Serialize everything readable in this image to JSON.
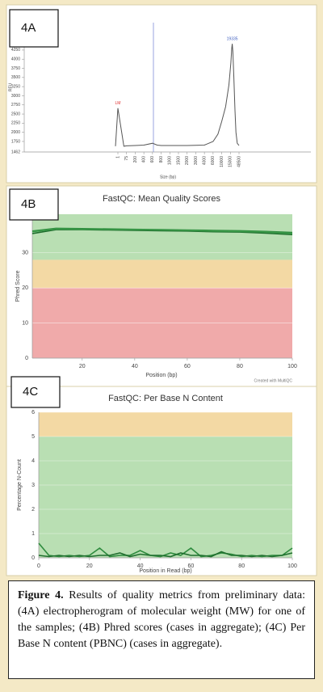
{
  "chart_data": [
    {
      "type": "line",
      "label": "4A",
      "y_label": "RFU",
      "x_label": "Size (bp)",
      "ylim": [
        1462,
        5000
      ],
      "yticks": [
        1462,
        1750,
        2000,
        2250,
        2500,
        2750,
        3000,
        3250,
        3500,
        3750,
        4000,
        4250
      ],
      "xticks": [
        1,
        75,
        200,
        400,
        600,
        800,
        1000,
        1500,
        2000,
        3000,
        4000,
        6000,
        10000,
        15000,
        48500
      ],
      "x": [
        -20,
        1,
        20,
        75,
        200,
        400,
        600,
        700,
        800,
        1000,
        2000,
        4000,
        6000,
        8000,
        10000,
        12000,
        14000,
        16000,
        18000,
        19335,
        21000,
        24000,
        28000,
        32000,
        38000,
        48500
      ],
      "series": [
        {
          "color": "#555555",
          "values": [
            1620,
            2660,
            1620,
            1630,
            1640,
            1650,
            1700,
            1650,
            1640,
            1640,
            1640,
            1650,
            1750,
            1950,
            2300,
            2700,
            3300,
            3900,
            4300,
            4420,
            4200,
            3500,
            2600,
            2000,
            1700,
            1640
          ]
        }
      ],
      "annotations": [
        {
          "text": "LM",
          "x": 1,
          "y": 2660,
          "color": "#e03030"
        },
        {
          "text": "19335",
          "x": 19335,
          "y": 4420,
          "color": "#4060c0"
        }
      ]
    },
    {
      "type": "line",
      "label": "4B",
      "title": "FastQC: Mean Quality Scores",
      "y_label": "Phred Score",
      "x_label": "Position (bp)",
      "credit": "Created with MultiQC",
      "xlim": [
        1,
        100
      ],
      "xticks": [
        20,
        40,
        60,
        80,
        100
      ],
      "ylim": [
        0,
        41
      ],
      "yticks": [
        0,
        10,
        20,
        30
      ],
      "grid": true,
      "bands": [
        {
          "from": 28,
          "to": 41,
          "color": "#b9dfb3"
        },
        {
          "from": 20,
          "to": 28,
          "color": "#f3d9a4"
        },
        {
          "from": 0,
          "to": 20,
          "color": "#f0aaaa"
        }
      ],
      "x": [
        1,
        10,
        20,
        30,
        40,
        50,
        60,
        70,
        80,
        90,
        100
      ],
      "series": [
        {
          "color": "#2e8b3e",
          "values": [
            36.2,
            37.0,
            36.9,
            36.8,
            36.7,
            36.6,
            36.5,
            36.4,
            36.3,
            36.1,
            35.8
          ]
        },
        {
          "color": "#1f6e2e",
          "values": [
            35.5,
            36.6,
            36.6,
            36.5,
            36.4,
            36.3,
            36.2,
            36.0,
            35.9,
            35.6,
            35.2
          ]
        },
        {
          "color": "#3a9a48",
          "values": [
            36.0,
            36.8,
            36.7,
            36.7,
            36.6,
            36.5,
            36.4,
            36.2,
            36.1,
            35.9,
            35.5
          ]
        }
      ]
    },
    {
      "type": "line",
      "label": "4C",
      "title": "FastQC: Per Base N Content",
      "y_label": "Percentage N-Count",
      "x_label": "Position in Read (bp)",
      "xlim": [
        0,
        100
      ],
      "xticks": [
        0,
        20,
        40,
        60,
        80,
        100
      ],
      "ylim": [
        0,
        6
      ],
      "yticks": [
        0,
        1,
        2,
        3,
        4,
        5,
        6
      ],
      "grid": true,
      "bands": [
        {
          "from": 5,
          "to": 6,
          "color": "#f3d9a4"
        },
        {
          "from": 0,
          "to": 5,
          "color": "#b9dfb3"
        }
      ],
      "x": [
        0,
        4,
        8,
        12,
        16,
        20,
        24,
        28,
        32,
        36,
        40,
        44,
        48,
        52,
        56,
        60,
        64,
        68,
        72,
        76,
        80,
        84,
        88,
        92,
        96,
        100
      ],
      "series": [
        {
          "color": "#2e8b3e",
          "values": [
            0.6,
            0.1,
            0.05,
            0.1,
            0.05,
            0.1,
            0.4,
            0.05,
            0.1,
            0.1,
            0.3,
            0.1,
            0.05,
            0.2,
            0.1,
            0.4,
            0.05,
            0.1,
            0.2,
            0.15,
            0.05,
            0.1,
            0.05,
            0.1,
            0.1,
            0.4
          ]
        },
        {
          "color": "#1f6e2e",
          "values": [
            0.1,
            0.05,
            0.1,
            0.05,
            0.1,
            0.05,
            0.1,
            0.1,
            0.2,
            0.05,
            0.15,
            0.1,
            0.1,
            0.05,
            0.2,
            0.1,
            0.1,
            0.05,
            0.25,
            0.1,
            0.1,
            0.05,
            0.1,
            0.05,
            0.1,
            0.2
          ]
        }
      ]
    }
  ],
  "caption": {
    "label": "Figure 4.",
    "text": "Results of quality metrics from preliminary data: (4A) electropherogram of molecular weight (MW) for one of the samples; (4B) Phred scores (cases in aggregate); (4C) Per Base N content (PBNC) (cases in aggregate)."
  }
}
